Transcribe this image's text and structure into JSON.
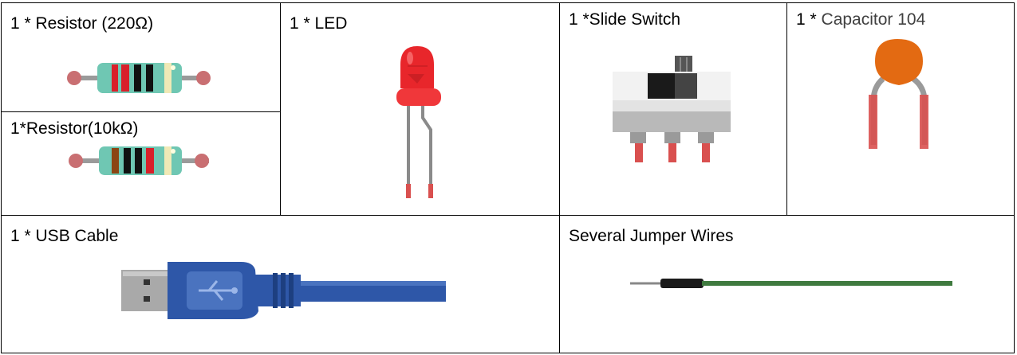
{
  "components": {
    "resistor_220": {
      "label": "1 * Resistor (220Ω)"
    },
    "resistor_10k": {
      "label": "1*Resistor(10kΩ)"
    },
    "led": {
      "label": "1 * LED"
    },
    "slide_switch": {
      "label": "1 *Slide Switch"
    },
    "capacitor": {
      "label_prefix": "1 * ",
      "label_name": "Capacitor 104"
    },
    "usb_cable": {
      "label": "1 * USB Cable"
    },
    "jumper_wires": {
      "label": "Several Jumper Wires"
    }
  },
  "colors": {
    "led_red": "#e8262b",
    "resistor_body": "#6fc7b3",
    "usb_blue": "#2e57a8",
    "wire_green": "#3f7a3f",
    "capacitor_orange": "#e36a12",
    "lead_red": "#d9504f"
  }
}
